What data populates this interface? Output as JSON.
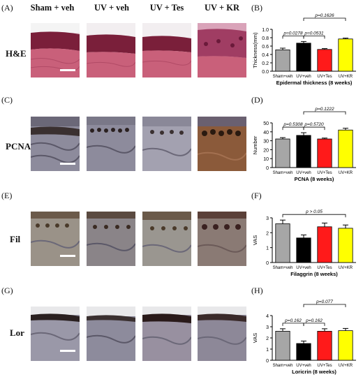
{
  "panel_labels": [
    "(A)",
    "(B)",
    "(C)",
    "(D)",
    "(E)",
    "(F)",
    "(G)",
    "(H)"
  ],
  "column_headers": [
    "Sham + veh",
    "UV + veh",
    "UV + Tes",
    "UV + KR"
  ],
  "row_labels": [
    "H&E",
    "PCNA",
    "Fil",
    "Lor"
  ],
  "colors": {
    "sham": "#a6a6a6",
    "uv": "#000000",
    "tes": "#ff1a1a",
    "kr": "#ffff00",
    "he_tissue": "#c9607a",
    "he_dark": "#7a1f3a",
    "ihc_tissue": "#8d8b9c",
    "ihc_dark": "#3a3030",
    "kr_stain": "#8b5a3a"
  },
  "chart_data": [
    {
      "type": "bar",
      "categories": [
        "Sham+veh",
        "UV+veh",
        "UV+Tes",
        "UV+KR"
      ],
      "values": [
        0.51,
        0.67,
        0.52,
        0.77
      ],
      "errors": [
        0.04,
        0.04,
        0.02,
        0.02
      ],
      "xlabel": "Epidermal thickness (8 weeks)",
      "ylabel": "Thickness(mm)",
      "ylim": [
        0,
        1.0
      ],
      "yticks": [
        "0.0",
        "0.2",
        "0.4",
        "0.6",
        "0.8",
        "1.0"
      ],
      "annotations": [
        {
          "text": "p=0.0278",
          "from": "Sham+veh",
          "to": "UV+veh"
        },
        {
          "text": "p=0.0531",
          "from": "UV+veh",
          "to": "UV+Tes"
        },
        {
          "text": "p=0.1626",
          "from": "UV+veh",
          "to": "UV+KR"
        }
      ]
    },
    {
      "type": "bar",
      "categories": [
        "Sham+veh",
        "UV+veh",
        "UV+Tes",
        "UV+KR"
      ],
      "values": [
        32,
        36,
        32,
        42
      ],
      "errors": [
        1.5,
        3,
        1,
        2
      ],
      "xlabel": "PCNA (8 weeks)",
      "ylabel": "Number",
      "ylim": [
        0,
        50
      ],
      "yticks": [
        "0",
        "10",
        "20",
        "30",
        "40",
        "50"
      ],
      "annotations": [
        {
          "text": "p=0.5308",
          "from": "Sham+veh",
          "to": "UV+veh"
        },
        {
          "text": "p=0.5720",
          "from": "UV+veh",
          "to": "UV+Tes"
        },
        {
          "text": "p=0.1222",
          "from": "UV+veh",
          "to": "UV+KR"
        }
      ]
    },
    {
      "type": "bar",
      "categories": [
        "Sham+veh",
        "UV+veh",
        "UV+Tes",
        "UV+KR"
      ],
      "values": [
        2.6,
        1.65,
        2.4,
        2.3
      ],
      "errors": [
        0.25,
        0.2,
        0.25,
        0.22
      ],
      "xlabel": "Filaggrin (8 weeks)",
      "ylabel": "VAS",
      "ylim": [
        0,
        3
      ],
      "yticks": [
        "0",
        "1",
        "2",
        "3"
      ],
      "annotations": [
        {
          "text": "p > 0.05",
          "from": "Sham+veh",
          "to": "UV+KR"
        }
      ]
    },
    {
      "type": "bar",
      "categories": [
        "Sham+veh",
        "UV+veh",
        "UV+Tes",
        "UV+KR"
      ],
      "values": [
        2.6,
        1.5,
        2.6,
        2.65
      ],
      "errors": [
        0.22,
        0.22,
        0.22,
        0.2
      ],
      "xlabel": "Loricrin (8 weeks)",
      "ylabel": "VAS",
      "ylim": [
        0,
        4
      ],
      "yticks": [
        "0",
        "1",
        "2",
        "3",
        "4"
      ],
      "annotations": [
        {
          "text": "p=0.162",
          "from": "Sham+veh",
          "to": "UV+veh"
        },
        {
          "text": "p=0.162",
          "from": "UV+veh",
          "to": "UV+Tes"
        },
        {
          "text": "p=0.077",
          "from": "UV+veh",
          "to": "UV+KR"
        }
      ]
    }
  ]
}
